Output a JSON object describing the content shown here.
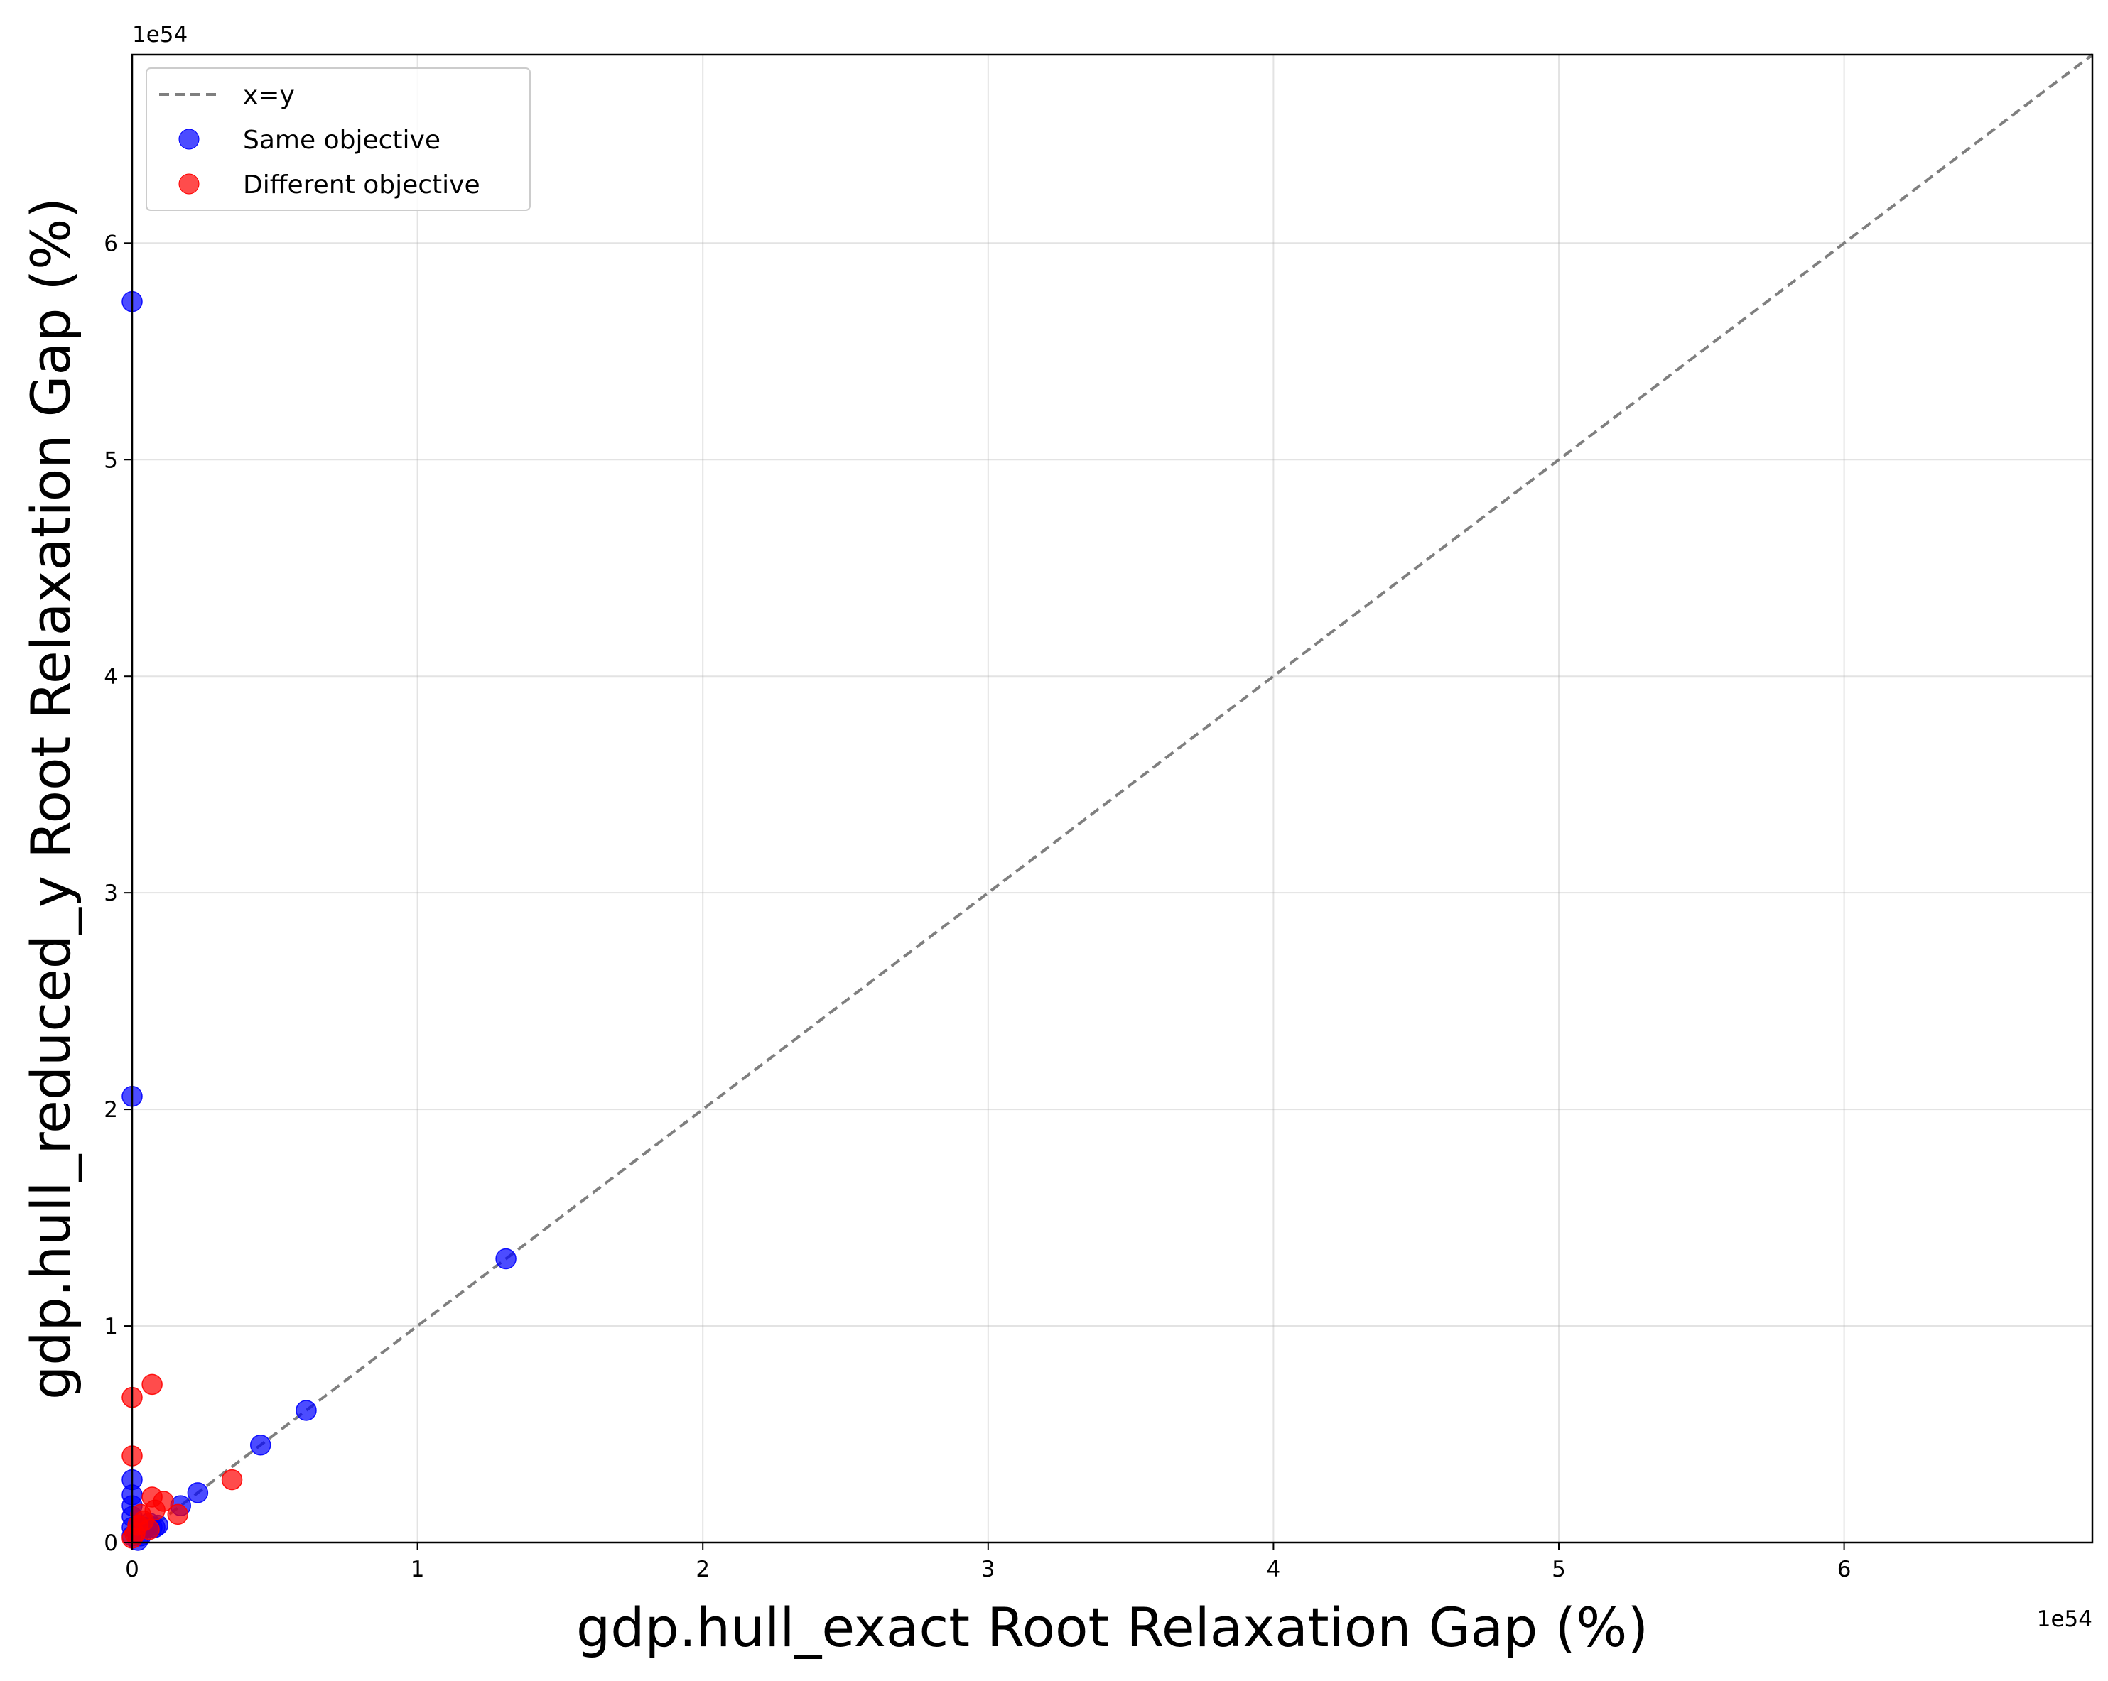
{
  "chart_data": {
    "type": "scatter",
    "title": "",
    "xlabel": "gdp.hull_exact Root Relaxation Gap (%)",
    "ylabel": "gdp.hull_reduced_y Root Relaxation Gap (%)",
    "x_offset_text": "1e54",
    "y_offset_text": "1e54",
    "xlim": [
      0,
      6.87
    ],
    "ylim": [
      0,
      6.87
    ],
    "xticks": [
      0,
      1,
      2,
      3,
      4,
      5,
      6
    ],
    "yticks": [
      0,
      1,
      2,
      3,
      4,
      5,
      6
    ],
    "grid": true,
    "legend_position": "top-left",
    "reference_line": {
      "name": "x=y",
      "color": "#7f7f7f",
      "style": "dashed",
      "points": [
        [
          0,
          0
        ],
        [
          6.87,
          6.87
        ]
      ]
    },
    "series": [
      {
        "name": "Same objective",
        "color": "#0000ff",
        "points": [
          [
            0.0,
            5.73
          ],
          [
            0.0,
            2.06
          ],
          [
            1.31,
            1.31
          ],
          [
            0.61,
            0.61
          ],
          [
            0.45,
            0.45
          ],
          [
            0.23,
            0.23
          ],
          [
            0.17,
            0.17
          ],
          [
            0.0,
            0.29
          ],
          [
            0.0,
            0.22
          ],
          [
            0.0,
            0.17
          ],
          [
            0.0,
            0.12
          ],
          [
            0.0,
            0.07
          ],
          [
            0.0,
            0.03
          ],
          [
            0.03,
            0.03
          ],
          [
            0.05,
            0.07
          ],
          [
            0.07,
            0.07
          ],
          [
            0.08,
            0.07
          ],
          [
            0.09,
            0.08
          ],
          [
            0.06,
            0.09
          ],
          [
            0.02,
            0.01
          ]
        ]
      },
      {
        "name": "Different objective",
        "color": "#ff0000",
        "points": [
          [
            0.0,
            0.67
          ],
          [
            0.07,
            0.73
          ],
          [
            0.0,
            0.4
          ],
          [
            0.35,
            0.29
          ],
          [
            0.07,
            0.21
          ],
          [
            0.11,
            0.19
          ],
          [
            0.16,
            0.13
          ],
          [
            0.08,
            0.15
          ],
          [
            0.04,
            0.1
          ],
          [
            0.02,
            0.08
          ],
          [
            0.06,
            0.06
          ],
          [
            0.01,
            0.04
          ],
          [
            0.0,
            0.02
          ],
          [
            0.03,
            0.13
          ]
        ]
      }
    ]
  }
}
